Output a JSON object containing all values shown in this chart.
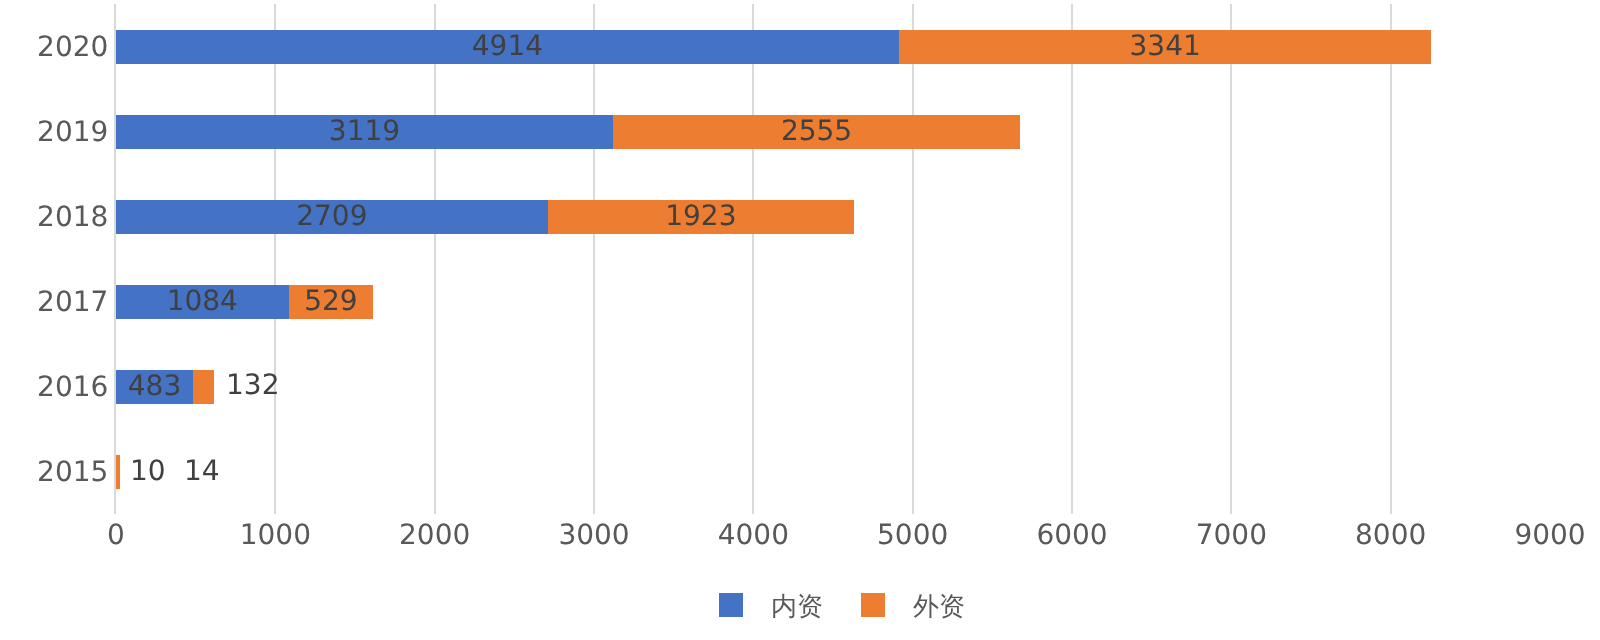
{
  "chart_data": {
    "type": "bar",
    "orientation": "horizontal",
    "stacked": true,
    "categories": [
      "2020",
      "2019",
      "2018",
      "2017",
      "2016",
      "2015"
    ],
    "series": [
      {
        "name": "内资",
        "color": "#4472c4",
        "values": [
          4914,
          3119,
          2709,
          1084,
          483,
          10
        ]
      },
      {
        "name": "外资",
        "color": "#ed7d31",
        "values": [
          3341,
          2555,
          1923,
          529,
          132,
          14
        ]
      }
    ],
    "xlim": [
      0,
      9000
    ],
    "xticks": [
      0,
      1000,
      2000,
      3000,
      4000,
      5000,
      6000,
      7000,
      8000,
      9000
    ],
    "grid": "x",
    "legend": "bottom",
    "data_labels": true
  }
}
